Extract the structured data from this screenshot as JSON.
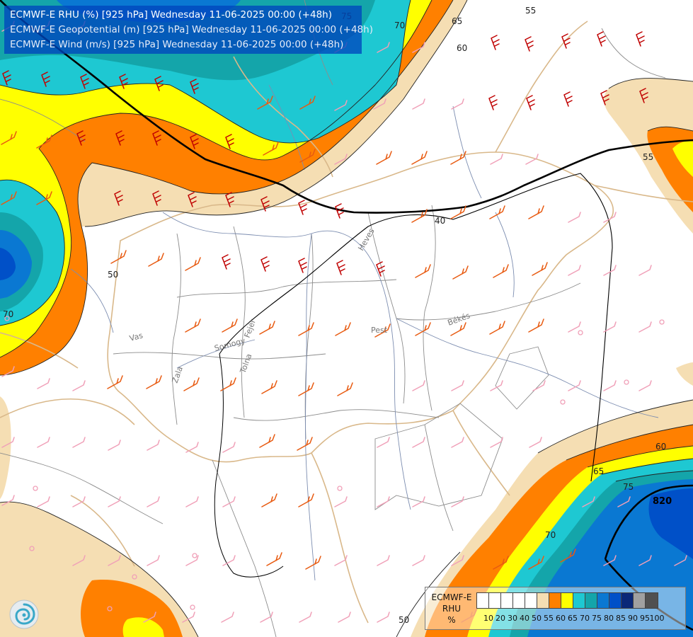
{
  "titles": [
    "ECMWF-E RHU (%) [925 hPa] Wednesday 11-06-2025 00:00 (+48h)",
    "ECMWF-E Geopotential (m) [925 hPa] Wednesday 11-06-2025 00:00 (+48h)",
    "ECMWF-E Wind (m/s) [925 hPa] Wednesday 11-06-2025 00:00 (+48h)"
  ],
  "legend": {
    "name_line1": "ECMWF-E",
    "name_line2": "RHU",
    "unit": "%",
    "ticks": [
      "10",
      "20",
      "30",
      "40",
      "50",
      "55",
      "60",
      "65",
      "70",
      "75",
      "80",
      "85",
      "90",
      "95",
      "100"
    ],
    "colors": [
      "#ffffff",
      "#ffffff",
      "#ffffff",
      "#ffffff",
      "#ffffff",
      "#f5deb3",
      "#ff8000",
      "#ffff00",
      "#1ec8d2",
      "#14a5aa",
      "#0a78d2",
      "#0050c8",
      "#0a2878",
      "#a0a0a0",
      "#505050"
    ]
  },
  "contour_labels": {
    "rhu": [
      "75",
      "70",
      "65",
      "60",
      "55",
      "50",
      "70",
      "55",
      "60",
      "65",
      "70",
      "75",
      "50"
    ],
    "geopotential": [
      "40",
      "820"
    ]
  },
  "region_labels": [
    "Heves",
    "Pest",
    "Békés",
    "Vas",
    "Zala",
    "Somogy",
    "Fejér",
    "Tolna"
  ],
  "colors": {
    "wind_strong": "#c00000",
    "wind_moderate": "#e85a10",
    "wind_weak": "#f0a0b8",
    "borders": "#d9b88a",
    "rivers": "#7c8db0"
  },
  "icons": [
    "logo-icon"
  ]
}
